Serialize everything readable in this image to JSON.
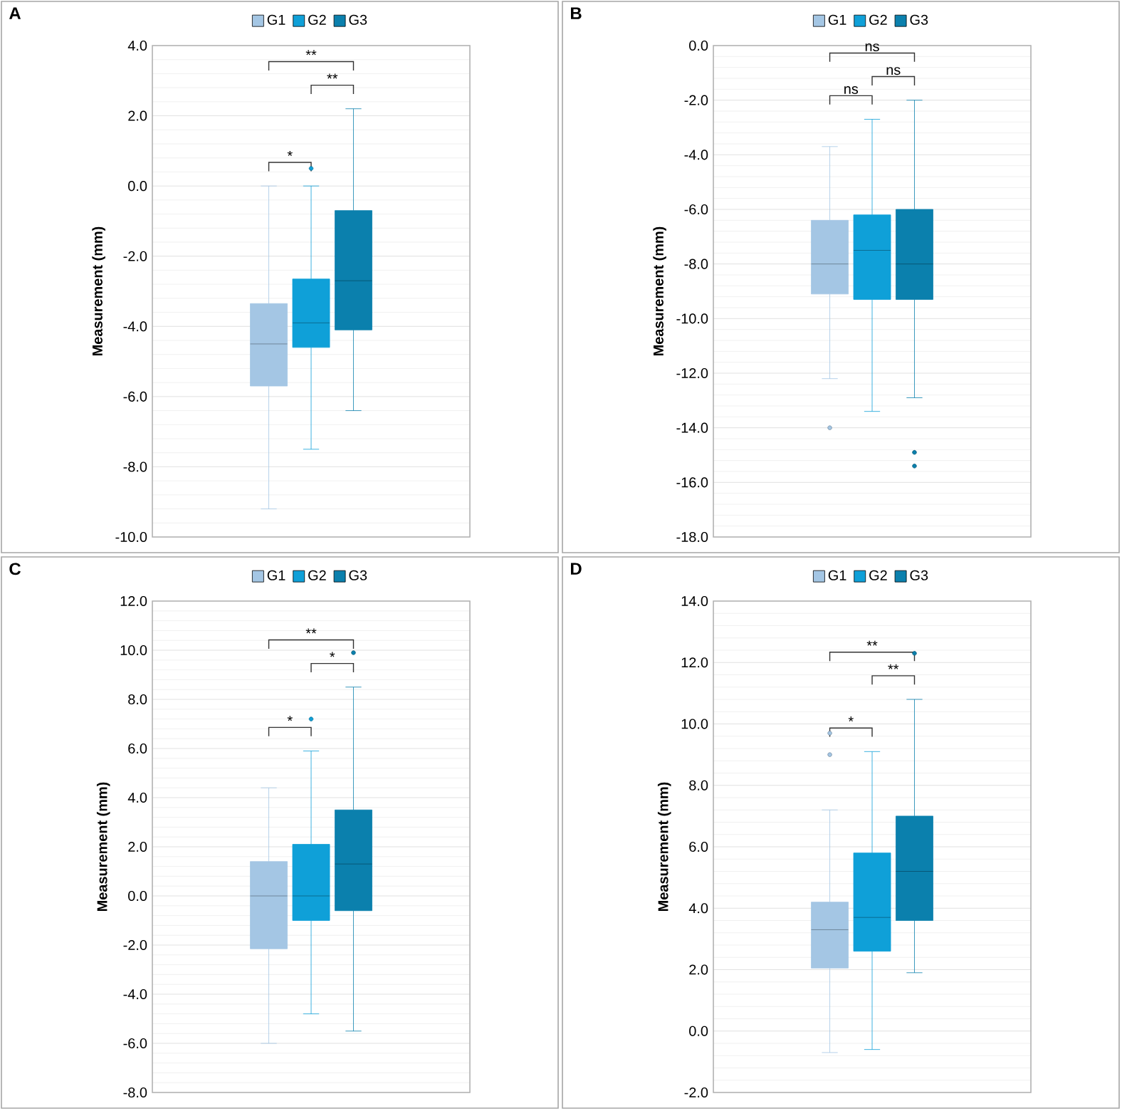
{
  "chart_data": [
    {
      "type": "box",
      "title": "A",
      "ylabel": "Measurement (mm)",
      "categories": [
        null
      ],
      "legend": "top",
      "grid": "y",
      "ylim": [
        -10,
        4
      ],
      "yticks": [
        {
          "value": -10,
          "label": "-10.0"
        },
        {
          "value": -8,
          "label": "-8.0"
        },
        {
          "value": -6,
          "label": "-6.0"
        },
        {
          "value": -4,
          "label": "-4.0"
        },
        {
          "value": -2,
          "label": "-2.0"
        },
        {
          "value": 0,
          "label": "0.0"
        },
        {
          "value": 2,
          "label": "2.0"
        },
        {
          "value": 4,
          "label": "4.0"
        }
      ],
      "series": [
        {
          "name": "G1",
          "color": "#a4c6e4",
          "boxes": [
            {
              "low": -9.2,
              "q1": -5.7,
              "median": -4.5,
              "q3": -3.35,
              "high": 0.0
            }
          ]
        },
        {
          "name": "G2",
          "color": "#0fa0d8",
          "boxes": [
            {
              "low": -7.5,
              "q1": -4.6,
              "median": -3.9,
              "q3": -2.65,
              "high": 0.0,
              "outliers": [
                0.5
              ]
            }
          ]
        },
        {
          "name": "G3",
          "color": "#0b80ad",
          "boxes": [
            {
              "low": -6.4,
              "q1": -4.1,
              "median": -2.7,
              "q3": -0.7,
              "high": 2.2
            }
          ]
        }
      ],
      "annotations": [
        "*",
        "**",
        "**"
      ]
    },
    {
      "type": "box",
      "title": "B",
      "ylabel": "Measurement (mm)",
      "categories": [
        null
      ],
      "legend": "top",
      "grid": "y",
      "ylim": [
        -18,
        0
      ],
      "yticks": [
        {
          "value": -18,
          "label": "-18.0"
        },
        {
          "value": -16,
          "label": "-16.0"
        },
        {
          "value": -14,
          "label": "-14.0"
        },
        {
          "value": -12,
          "label": "-12.0"
        },
        {
          "value": -10,
          "label": "-10.0"
        },
        {
          "value": -8,
          "label": "-8.0"
        },
        {
          "value": -6,
          "label": "-6.0"
        },
        {
          "value": -4,
          "label": "-4.0"
        },
        {
          "value": -2,
          "label": "-2.0"
        },
        {
          "value": 0,
          "label": "0.0"
        }
      ],
      "series": [
        {
          "name": "G1",
          "color": "#a4c6e4",
          "boxes": [
            {
              "low": -12.2,
              "q1": -9.1,
              "median": -8.0,
              "q3": -6.4,
              "high": -3.7,
              "outliers": [
                -14.0
              ]
            }
          ]
        },
        {
          "name": "G2",
          "color": "#0fa0d8",
          "boxes": [
            {
              "low": -13.4,
              "q1": -9.3,
              "median": -7.5,
              "q3": -6.2,
              "high": -2.7
            }
          ]
        },
        {
          "name": "G3",
          "color": "#0b80ad",
          "boxes": [
            {
              "low": -12.9,
              "q1": -9.3,
              "median": -8.0,
              "q3": -6.0,
              "high": -2.0,
              "outliers": [
                -14.9,
                -15.4
              ]
            }
          ]
        }
      ],
      "annotations": [
        "ns",
        "ns",
        "ns"
      ]
    },
    {
      "type": "box",
      "title": "C",
      "ylabel": "Measurement (mm)",
      "categories": [
        null
      ],
      "legend": "top",
      "grid": "y",
      "ylim": [
        -8,
        12
      ],
      "yticks": [
        {
          "value": -8,
          "label": "-8.0"
        },
        {
          "value": -6,
          "label": "-6.0"
        },
        {
          "value": -4,
          "label": "-4.0"
        },
        {
          "value": -2,
          "label": "-2.0"
        },
        {
          "value": 0,
          "label": "0.0"
        },
        {
          "value": 2,
          "label": "2.0"
        },
        {
          "value": 4,
          "label": "4.0"
        },
        {
          "value": 6,
          "label": "6.0"
        },
        {
          "value": 8,
          "label": "8.0"
        },
        {
          "value": 10,
          "label": "10.0"
        },
        {
          "value": 12,
          "label": "12.0"
        }
      ],
      "series": [
        {
          "name": "G1",
          "color": "#a4c6e4",
          "boxes": [
            {
              "low": -6.0,
              "q1": -2.15,
              "median": 0.0,
              "q3": 1.4,
              "high": 4.4
            }
          ]
        },
        {
          "name": "G2",
          "color": "#0fa0d8",
          "boxes": [
            {
              "low": -4.8,
              "q1": -1.0,
              "median": 0.0,
              "q3": 2.1,
              "high": 5.9,
              "outliers": [
                7.2
              ]
            }
          ]
        },
        {
          "name": "G3",
          "color": "#0b80ad",
          "boxes": [
            {
              "low": -5.5,
              "q1": -0.6,
              "median": 1.3,
              "q3": 3.5,
              "high": 8.5,
              "outliers": [
                9.9
              ]
            }
          ]
        }
      ],
      "annotations": [
        "*",
        "*",
        "**"
      ]
    },
    {
      "type": "box",
      "title": "D",
      "ylabel": "Measurement (mm)",
      "categories": [
        null
      ],
      "legend": "top",
      "grid": "y",
      "ylim": [
        -2,
        14
      ],
      "yticks": [
        {
          "value": -2,
          "label": "-2.0"
        },
        {
          "value": 0,
          "label": "0.0"
        },
        {
          "value": 2,
          "label": "2.0"
        },
        {
          "value": 4,
          "label": "4.0"
        },
        {
          "value": 6,
          "label": "6.0"
        },
        {
          "value": 8,
          "label": "8.0"
        },
        {
          "value": 10,
          "label": "10.0"
        },
        {
          "value": 12,
          "label": "12.0"
        },
        {
          "value": 14,
          "label": "14.0"
        }
      ],
      "series": [
        {
          "name": "G1",
          "color": "#a4c6e4",
          "boxes": [
            {
              "low": -0.7,
              "q1": 2.05,
              "median": 3.3,
              "q3": 4.2,
              "high": 7.2,
              "outliers": [
                9.0,
                9.7
              ]
            }
          ]
        },
        {
          "name": "G2",
          "color": "#0fa0d8",
          "boxes": [
            {
              "low": -0.6,
              "q1": 2.6,
              "median": 3.7,
              "q3": 5.8,
              "high": 9.1
            }
          ]
        },
        {
          "name": "G3",
          "color": "#0b80ad",
          "boxes": [
            {
              "low": 1.9,
              "q1": 3.6,
              "median": 5.2,
              "q3": 7.0,
              "high": 10.8,
              "outliers": [
                12.3
              ]
            }
          ]
        }
      ],
      "annotations": [
        "*",
        "**",
        "**"
      ]
    }
  ]
}
